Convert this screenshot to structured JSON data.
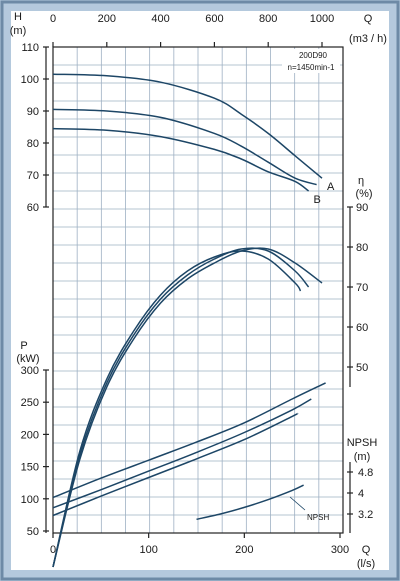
{
  "chart_data": {
    "type": "line",
    "info": {
      "model": "200D90",
      "speed": "n=1450min-1"
    },
    "axes": {
      "q_top": {
        "label_symbol": "Q",
        "unit": "(m3 / h)",
        "ticks": [
          0,
          200,
          400,
          600,
          800,
          1000
        ],
        "range": [
          0,
          1000
        ]
      },
      "q_bottom": {
        "label_symbol": "Q",
        "unit": "(l/s)",
        "ticks": [
          0,
          100,
          200,
          300
        ],
        "range": [
          0,
          300
        ]
      },
      "head": {
        "label_symbol": "H",
        "unit": "(m)",
        "ticks": [
          60,
          70,
          80,
          90,
          100,
          110
        ],
        "range": [
          60,
          110
        ]
      },
      "efficiency": {
        "label_symbol": "η",
        "unit": "(%)",
        "ticks": [
          50,
          60,
          70,
          80,
          90
        ],
        "range": [
          45,
          90
        ]
      },
      "power": {
        "label_symbol": "P",
        "unit": "(kW)",
        "ticks": [
          50,
          100,
          150,
          200,
          250,
          300
        ],
        "range": [
          50,
          300
        ]
      },
      "npsh": {
        "label_symbol": "NPSH",
        "unit": "(m)",
        "ticks": [
          "3.2",
          "4",
          "4.8"
        ],
        "range": [
          3.2,
          4.8
        ]
      }
    },
    "series": {
      "head": [
        {
          "name": "A",
          "q_m3h": [
            0,
            200,
            400,
            600,
            700,
            800,
            900,
            1000
          ],
          "h_m": [
            101.5,
            101,
            99,
            94,
            89,
            83,
            76,
            69
          ]
        },
        {
          "q_m3h": [
            0,
            200,
            400,
            600,
            700,
            800,
            900,
            980
          ],
          "h_m": [
            90.5,
            90,
            88,
            83,
            79,
            74,
            69,
            67
          ]
        },
        {
          "name": "B",
          "q_m3h": [
            0,
            200,
            400,
            600,
            700,
            800,
            900,
            950
          ],
          "h_m": [
            84.5,
            84,
            82,
            78,
            75,
            71,
            68,
            65
          ]
        }
      ],
      "efficiency": [
        {
          "q_m3h": [
            0,
            100,
            200,
            300,
            400,
            500,
            600,
            700,
            800,
            900,
            1000
          ],
          "eff_pct": [
            0,
            27,
            45,
            57,
            66,
            72,
            76,
            79,
            79.5,
            76,
            71
          ]
        },
        {
          "q_m3h": [
            0,
            100,
            200,
            300,
            400,
            500,
            600,
            700,
            800,
            900,
            950
          ],
          "eff_pct": [
            0,
            28,
            46,
            58,
            67,
            73,
            77,
            79.5,
            79,
            74,
            70
          ]
        },
        {
          "q_m3h": [
            0,
            100,
            200,
            300,
            400,
            500,
            600,
            700,
            800,
            900,
            920
          ],
          "eff_pct": [
            0,
            29,
            47,
            59,
            68,
            74,
            77.5,
            79,
            77,
            71,
            69
          ]
        }
      ],
      "power": [
        {
          "q_ls": [
            0,
            50,
            100,
            150,
            200,
            250,
            285
          ],
          "p_kw": [
            102,
            132,
            160,
            188,
            218,
            255,
            280
          ]
        },
        {
          "q_ls": [
            0,
            50,
            100,
            150,
            200,
            250,
            270
          ],
          "p_kw": [
            86,
            114,
            143,
            172,
            203,
            238,
            255
          ]
        },
        {
          "q_ls": [
            0,
            50,
            100,
            150,
            200,
            250,
            255
          ],
          "p_kw": [
            74,
            104,
            133,
            162,
            192,
            228,
            232
          ]
        }
      ],
      "npsh": [
        {
          "name": "NPSH",
          "q_ls": [
            150,
            175,
            200,
            225,
            250,
            262
          ],
          "npsh_m": [
            3.0,
            3.2,
            3.45,
            3.75,
            4.1,
            4.3
          ]
        }
      ]
    }
  }
}
